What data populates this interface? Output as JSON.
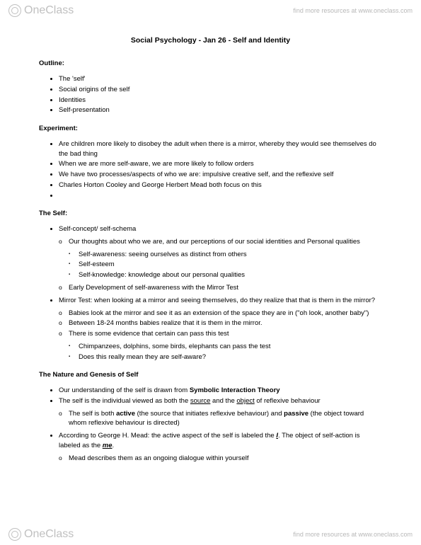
{
  "brand": {
    "name": "OneClass",
    "resources": "find more resources at www.oneclass.com"
  },
  "doc": {
    "title": "Social Psychology - Jan 26 - Self and Identity",
    "sections": {
      "outline": {
        "head": "Outline:",
        "items": [
          "The 'self'",
          "Social origins of the self",
          "Identities",
          "Self-presentation"
        ]
      },
      "experiment": {
        "head": "Experiment:",
        "items": [
          "Are children more likely to disobey the adult when there is a mirror, whereby they would see themselves do the bad thing",
          "When we are more self-aware, we are more likely to follow orders",
          "We have two processes/aspects of who we are: impulsive creative self, and the reflexive self",
          "Charles Horton Cooley and George Herbert Mead both focus on this",
          ""
        ]
      },
      "self": {
        "head": "The Self:",
        "items": [
          {
            "t": "Self-concept/ self-schema",
            "sub": [
              {
                "t": "Our thoughts about who we are, and our perceptions of our social identities and Personal qualities",
                "sub": [
                  "Self-awareness: seeing ourselves as distinct from others",
                  "Self-esteem",
                  "Self-knowledge: knowledge about our personal qualities"
                ]
              },
              {
                "t": "Early Development of self-awareness with the Mirror Test"
              }
            ]
          },
          {
            "t": "Mirror Test: when looking at a mirror and seeing themselves, do they realize that that is them in the mirror?",
            "sub": [
              {
                "t": "Babies look at the mirror and see it as an extension of the space they are in (\"oh look, another baby\")"
              },
              {
                "t": "Between 18-24 months babies realize that it is them in the mirror."
              },
              {
                "t": "There is some evidence that certain can pass this test",
                "sub": [
                  "Chimpanzees, dolphins, some birds, elephants can pass the test",
                  "Does this really mean they are self-aware?"
                ]
              }
            ]
          }
        ]
      },
      "nature": {
        "head": "The Nature and Genesis of Self",
        "p1_a": "Our understanding of the self is drawn from ",
        "p1_b": "Symbolic Interaction Theory",
        "p2_a": "The self is the individual viewed as both the ",
        "p2_src": "source",
        "p2_b": " and the ",
        "p2_obj": "object",
        "p2_c": " of reflexive behaviour",
        "p2_sub_a": "The self is both ",
        "p2_sub_active": "active",
        "p2_sub_b": " (the source that initiates reflexive behaviour) and ",
        "p2_sub_passive": "passive",
        "p2_sub_c": " (the object toward whom reflexive behaviour is directed)",
        "p3_a": "According to George H. Mead: the active aspect of the self is labeled the ",
        "p3_I": "I",
        "p3_b": ". The object of self-action is labeled as the ",
        "p3_me": "me",
        "p3_c": ".",
        "p3_sub": "Mead describes them as an ongoing dialogue within yourself"
      }
    }
  }
}
